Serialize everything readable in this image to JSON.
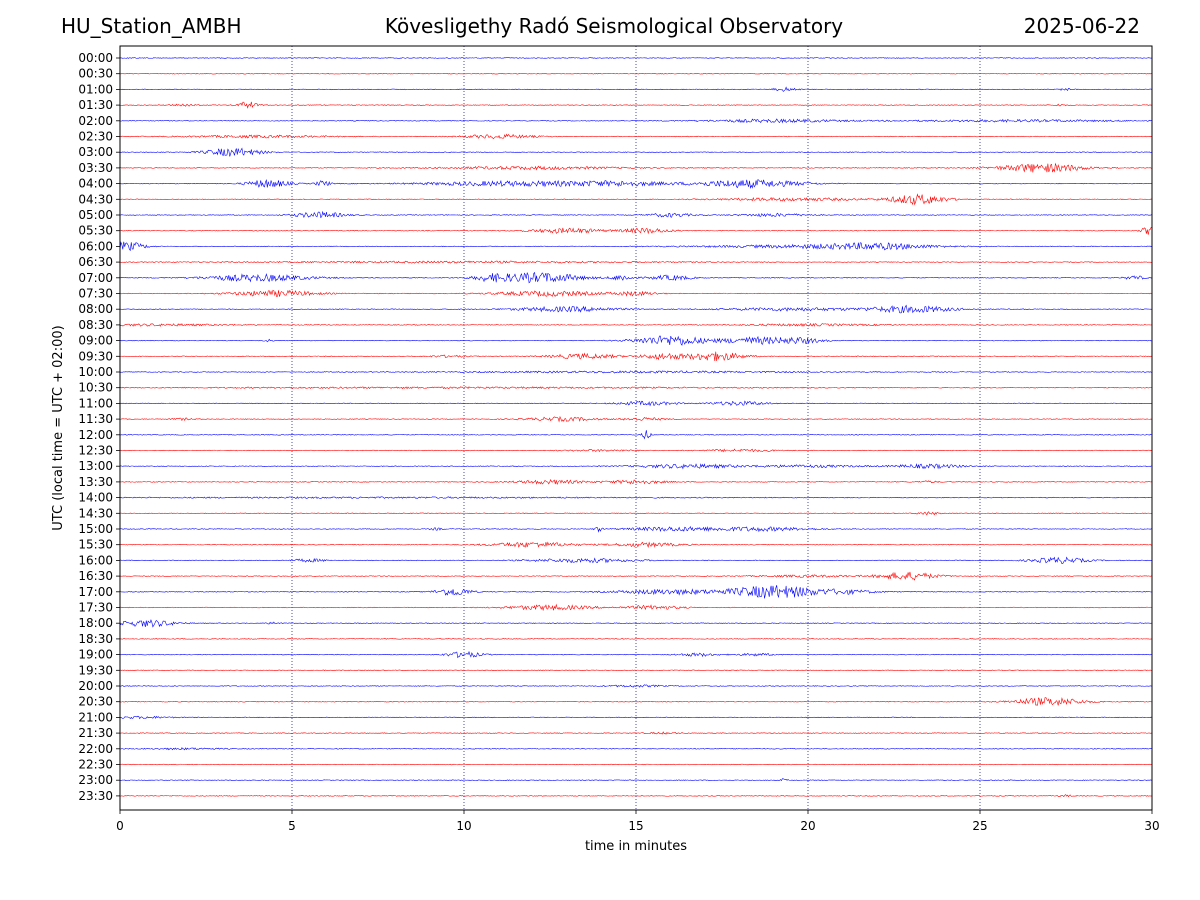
{
  "header": {
    "station": "HU_Station_AMBH",
    "observatory": "Kövesligethy Radó Seismological Observatory",
    "date": "2025-06-22"
  },
  "chart_data": {
    "type": "line",
    "title": "Kövesligethy Radó Seismological Observatory",
    "xlabel": "time in minutes",
    "ylabel": "UTC (local time = UTC + 02:00)",
    "xlim": [
      0,
      30
    ],
    "x_ticks": [
      0,
      5,
      10,
      15,
      20,
      25,
      30
    ],
    "grid": "vertical dotted lines at 5-minute ticks",
    "colors": {
      "even_rows": "#0000ff",
      "odd_rows": "#ff0000",
      "grid": "#000080"
    },
    "series": [
      {
        "label": "00:00",
        "events": []
      },
      {
        "label": "00:30",
        "events": []
      },
      {
        "label": "01:00",
        "events": [
          [
            19.3,
            0.3,
            2
          ],
          [
            27.5,
            0.2,
            1
          ]
        ]
      },
      {
        "label": "01:30",
        "events": [
          [
            3.7,
            0.3,
            3.5
          ],
          [
            1.8,
            0.4,
            1
          ],
          [
            27.3,
            0.2,
            1
          ]
        ]
      },
      {
        "label": "02:00",
        "events": [
          [
            19.0,
            2.0,
            1.5
          ],
          [
            26.0,
            3.0,
            1
          ]
        ]
      },
      {
        "label": "02:30",
        "events": [
          [
            11.0,
            1.0,
            2
          ],
          [
            4.0,
            2.0,
            1.2
          ]
        ]
      },
      {
        "label": "03:00",
        "events": [
          [
            3.3,
            0.8,
            4
          ]
        ]
      },
      {
        "label": "03:30",
        "events": [
          [
            26.8,
            1.2,
            4.5
          ],
          [
            12.0,
            2.5,
            1.5
          ]
        ]
      },
      {
        "label": "04:00",
        "events": [
          [
            4.3,
            0.6,
            4
          ],
          [
            18.3,
            1.5,
            4
          ],
          [
            11.5,
            2.5,
            2.5
          ],
          [
            14.5,
            1.5,
            2
          ],
          [
            5.9,
            0.2,
            3
          ]
        ]
      },
      {
        "label": "04:30",
        "events": [
          [
            23.2,
            0.8,
            5
          ],
          [
            19.5,
            2.0,
            1.5
          ]
        ]
      },
      {
        "label": "05:00",
        "events": [
          [
            5.8,
            0.7,
            3
          ],
          [
            16.0,
            0.6,
            2
          ],
          [
            19.0,
            1.0,
            1.5
          ]
        ]
      },
      {
        "label": "05:30",
        "events": [
          [
            13.0,
            1.0,
            2.5
          ],
          [
            15.3,
            0.7,
            2.5
          ],
          [
            29.9,
            0.2,
            4
          ]
        ]
      },
      {
        "label": "06:00",
        "events": [
          [
            0.2,
            0.5,
            4.5
          ],
          [
            22.0,
            1.5,
            2.5
          ],
          [
            20.0,
            3.0,
            1.5
          ]
        ]
      },
      {
        "label": "06:30",
        "events": [
          [
            10.0,
            6.0,
            0.8
          ]
        ]
      },
      {
        "label": "07:00",
        "events": [
          [
            12.2,
            1.2,
            5
          ],
          [
            4.0,
            1.5,
            3.5
          ],
          [
            10.8,
            0.5,
            3
          ],
          [
            14.6,
            0.3,
            3
          ],
          [
            16.0,
            0.6,
            2.5
          ],
          [
            29.5,
            0.3,
            2
          ]
        ]
      },
      {
        "label": "07:30",
        "events": [
          [
            4.5,
            1.2,
            3
          ],
          [
            12.5,
            1.5,
            2.5
          ],
          [
            15.0,
            0.6,
            2
          ]
        ]
      },
      {
        "label": "08:00",
        "events": [
          [
            23.0,
            1.2,
            3.5
          ],
          [
            13.0,
            1.5,
            2.5
          ],
          [
            19.5,
            2.0,
            1.5
          ]
        ]
      },
      {
        "label": "08:30",
        "events": [
          [
            1.0,
            2.0,
            1
          ],
          [
            20.0,
            2.0,
            1
          ]
        ]
      },
      {
        "label": "09:00",
        "events": [
          [
            16.0,
            1.0,
            5
          ],
          [
            18.5,
            1.0,
            3.5
          ],
          [
            19.8,
            0.6,
            2.5
          ],
          [
            4.3,
            0.1,
            2
          ]
        ]
      },
      {
        "label": "09:30",
        "events": [
          [
            17.3,
            0.8,
            4.5
          ],
          [
            13.5,
            1.0,
            2.5
          ],
          [
            15.8,
            0.6,
            3
          ],
          [
            9.5,
            0.6,
            1
          ]
        ]
      },
      {
        "label": "10:00",
        "events": [
          [
            15.0,
            5.0,
            0.8
          ]
        ]
      },
      {
        "label": "10:30",
        "events": [
          [
            10.0,
            8.0,
            0.6
          ]
        ]
      },
      {
        "label": "11:00",
        "events": [
          [
            15.3,
            0.8,
            2
          ],
          [
            18.0,
            0.8,
            2
          ]
        ]
      },
      {
        "label": "11:30",
        "events": [
          [
            12.8,
            1.0,
            2
          ],
          [
            15.2,
            0.6,
            1.5
          ],
          [
            1.8,
            0.3,
            1
          ]
        ]
      },
      {
        "label": "12:00",
        "events": [
          [
            15.3,
            0.1,
            6
          ]
        ]
      },
      {
        "label": "12:30",
        "events": [
          [
            18.0,
            1.0,
            1.2
          ],
          [
            14.0,
            1.0,
            0.8
          ]
        ]
      },
      {
        "label": "13:00",
        "events": [
          [
            16.5,
            1.5,
            2
          ],
          [
            23.5,
            1.0,
            2
          ],
          [
            20.0,
            1.5,
            1.2
          ]
        ]
      },
      {
        "label": "13:30",
        "events": [
          [
            12.5,
            1.0,
            2
          ],
          [
            15.0,
            0.8,
            2
          ],
          [
            23.5,
            0.3,
            1
          ]
        ]
      },
      {
        "label": "14:00",
        "events": [
          [
            8.0,
            8.0,
            0.5
          ]
        ]
      },
      {
        "label": "14:30",
        "events": [
          [
            23.5,
            0.3,
            1.5
          ]
        ]
      },
      {
        "label": "15:00",
        "events": [
          [
            16.0,
            1.2,
            2
          ],
          [
            18.5,
            1.5,
            2
          ],
          [
            13.9,
            0.1,
            2.5
          ],
          [
            9.2,
            0.2,
            1
          ]
        ]
      },
      {
        "label": "15:30",
        "events": [
          [
            12.0,
            1.2,
            2.5
          ],
          [
            15.3,
            1.0,
            2
          ]
        ]
      },
      {
        "label": "16:00",
        "events": [
          [
            27.3,
            0.8,
            3
          ],
          [
            13.5,
            1.5,
            2
          ],
          [
            5.5,
            0.5,
            1.5
          ]
        ]
      },
      {
        "label": "16:30",
        "events": [
          [
            22.9,
            0.8,
            4
          ],
          [
            20.0,
            1.5,
            1
          ]
        ]
      },
      {
        "label": "17:00",
        "events": [
          [
            19.0,
            1.2,
            6.5
          ],
          [
            9.7,
            0.5,
            4
          ],
          [
            16.0,
            1.5,
            2.5
          ],
          [
            21.0,
            1.0,
            2
          ]
        ]
      },
      {
        "label": "17:30",
        "events": [
          [
            12.5,
            1.2,
            2.5
          ],
          [
            15.5,
            0.8,
            2
          ]
        ]
      },
      {
        "label": "18:00",
        "events": [
          [
            0.8,
            0.8,
            3.5
          ],
          [
            4.5,
            0.2,
            1
          ]
        ]
      },
      {
        "label": "18:30",
        "events": []
      },
      {
        "label": "19:00",
        "events": [
          [
            10.0,
            0.5,
            3
          ],
          [
            16.8,
            0.6,
            1.5
          ],
          [
            18.5,
            0.5,
            1.2
          ]
        ]
      },
      {
        "label": "19:30",
        "events": []
      },
      {
        "label": "20:00",
        "events": [
          [
            15.0,
            0.8,
            1
          ]
        ]
      },
      {
        "label": "20:30",
        "events": [
          [
            27.0,
            1.0,
            4
          ]
        ]
      },
      {
        "label": "21:00",
        "events": [
          [
            0.5,
            1.0,
            1
          ]
        ]
      },
      {
        "label": "21:30",
        "events": [
          [
            15.8,
            0.5,
            0.8
          ]
        ]
      },
      {
        "label": "22:00",
        "events": [
          [
            2.0,
            1.0,
            0.8
          ]
        ]
      },
      {
        "label": "22:30",
        "events": []
      },
      {
        "label": "23:00",
        "events": [
          [
            19.3,
            0.1,
            1.5
          ]
        ]
      },
      {
        "label": "23:30",
        "events": [
          [
            27.5,
            0.2,
            1
          ]
        ]
      }
    ]
  }
}
